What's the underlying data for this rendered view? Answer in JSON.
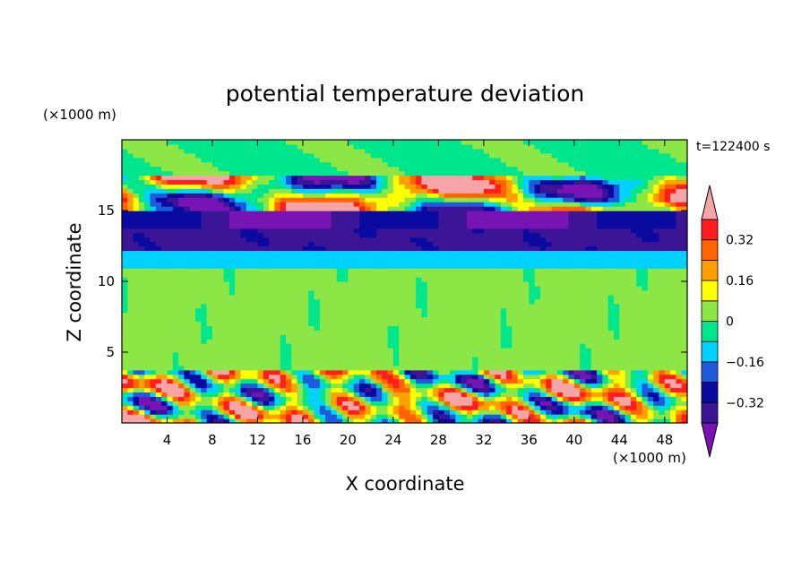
{
  "chart_data": {
    "type": "heatmap",
    "title": "potential temperature deviation",
    "xlabel": "X coordinate",
    "ylabel": "Z coordinate",
    "x_unit_label": "(×1000 m)",
    "y_unit_label": "(×1000 m)",
    "time_label": "t=122400 s",
    "xlim": [
      0,
      50
    ],
    "ylim": [
      0,
      20
    ],
    "x_ticks": [
      4,
      8,
      12,
      16,
      20,
      24,
      28,
      32,
      36,
      40,
      44,
      48
    ],
    "y_ticks": [
      5,
      10,
      15
    ],
    "colorbar": {
      "levels": [
        -0.4,
        -0.32,
        -0.24,
        -0.16,
        -0.08,
        0,
        0.08,
        0.16,
        0.24,
        0.32,
        0.4
      ],
      "tick_labels": [
        "-0.32",
        "-0.16",
        "0",
        "0.16",
        "0.32"
      ],
      "tick_values": [
        -0.32,
        -0.16,
        0,
        0.16,
        0.32
      ],
      "colors": [
        "#3c1496",
        "#0a0aa0",
        "#1e5adc",
        "#00d2ff",
        "#00e68c",
        "#8ce646",
        "#ffff00",
        "#ffa000",
        "#ff6400",
        "#ff1e1e"
      ],
      "under_color": "#7814b4",
      "over_color": "#f5a5a5"
    },
    "field_layers": [
      {
        "zmin": 0.2,
        "zmax": 3.6,
        "dominant": "mixed",
        "description_level": 0.0
      },
      {
        "zmin": 3.6,
        "zmax": 3.8,
        "dominant": -0.32
      },
      {
        "zmin": 3.8,
        "zmax": 11.0,
        "dominant": 0.04
      },
      {
        "zmin": 11.0,
        "zmax": 12.4,
        "dominant": -0.12
      },
      {
        "zmin": 12.4,
        "zmax": 13.6,
        "dominant": -0.36
      },
      {
        "zmin": 13.6,
        "zmax": 15.2,
        "dominant": -0.4
      },
      {
        "zmin": 15.2,
        "zmax": 17.5,
        "dominant": 0.45
      },
      {
        "zmin": 17.5,
        "zmax": 20.0,
        "dominant": -0.04
      }
    ]
  }
}
